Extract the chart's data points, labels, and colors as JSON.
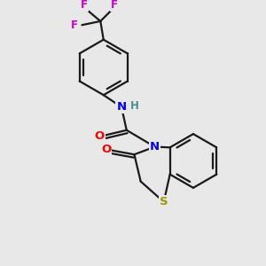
{
  "background_color": "#e8e8e8",
  "bond_color": "#1a1a1a",
  "bond_width": 1.6,
  "N_color": "#0000ff",
  "O_color": "#ff0000",
  "S_color": "#999900",
  "F_color": "#cc00cc",
  "H_color": "#4a9090",
  "figsize": [
    3.0,
    3.0
  ],
  "dpi": 100,
  "xlim": [
    0,
    10
  ],
  "ylim": [
    0,
    10
  ]
}
